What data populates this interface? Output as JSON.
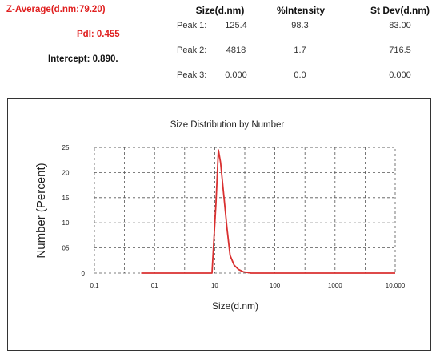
{
  "summary": {
    "z_average": "Z-Average(d.nm:79.20)",
    "pdi": "PdI: 0.455",
    "intercept": "Intercept: 0.890."
  },
  "results_table": {
    "headers": [
      "Size(d.nm)",
      "%Intensity",
      "St Dev(d.nm)"
    ],
    "rows": [
      {
        "label": "Peak 1:",
        "size": "125.4",
        "intensity": "98.3",
        "stdev": "83.00"
      },
      {
        "label": "Peak 2:",
        "size": "4818",
        "intensity": "1.7",
        "stdev": "716.5"
      },
      {
        "label": "Peak 3:",
        "size": "0.000",
        "intensity": "0.0",
        "stdev": "0.000"
      }
    ]
  },
  "colors": {
    "summary_accent": "#e02020",
    "series_line": "#d93030",
    "grid": "#555555"
  },
  "chart_data": {
    "type": "line",
    "title": "Size Distribution by Number",
    "xlabel": "Size(d.nm)",
    "ylabel": "Number (Percent)",
    "x_scale": "log",
    "xlim": [
      0.1,
      10000
    ],
    "ylim": [
      0,
      25
    ],
    "x_ticks": [
      {
        "value": 0.1,
        "label": "0.1"
      },
      {
        "value": 1,
        "label": "01"
      },
      {
        "value": 10,
        "label": "10"
      },
      {
        "value": 100,
        "label": "100"
      },
      {
        "value": 1000,
        "label": "1000"
      },
      {
        "value": 10000,
        "label": "10,000"
      }
    ],
    "y_ticks": [
      {
        "value": 0,
        "label": "0"
      },
      {
        "value": 5,
        "label": "05"
      },
      {
        "value": 10,
        "label": "10"
      },
      {
        "value": 15,
        "label": "15"
      },
      {
        "value": 20,
        "label": "20"
      },
      {
        "value": 25,
        "label": "25"
      }
    ],
    "grid": true,
    "series": [
      {
        "x": [
          0.6,
          9,
          10.5,
          11.5,
          12.5,
          14,
          16,
          18,
          21,
          25,
          30,
          40,
          10000
        ],
        "y": [
          0,
          0,
          14,
          24.5,
          22,
          16,
          9,
          3.5,
          1.6,
          0.7,
          0.25,
          0,
          0
        ]
      }
    ]
  }
}
